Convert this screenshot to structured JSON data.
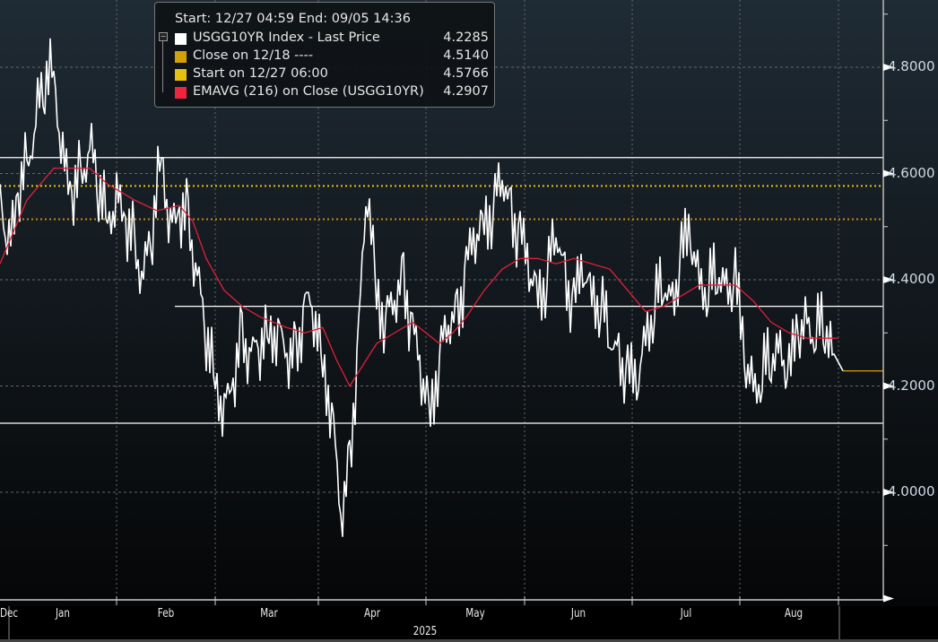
{
  "legend": {
    "header": "Start: 12/27 04:59 End: 09/05 14:36",
    "items": [
      {
        "label": "USGG10YR Index - Last Price",
        "value": "4.2285",
        "color": "#ffffff"
      },
      {
        "label": "Close on 12/18 ----",
        "value": "4.5140",
        "color": "#d4a00a"
      },
      {
        "label": "Start on 12/27 06:00",
        "value": "4.5766",
        "color": "#e8c010"
      },
      {
        "label": "EMAVG (216)  on Close (USGG10YR)",
        "value": "4.2907",
        "color": "#f0243c"
      }
    ]
  },
  "chart_data": {
    "type": "line",
    "title": "USGG10YR Index",
    "xlabel": "2025",
    "ylabel": "",
    "ylim": [
      3.8,
      4.9
    ],
    "yticks": [
      "4.8000",
      "4.6000",
      "4.4000",
      "4.2000",
      "4.0000"
    ],
    "ytick_values": [
      4.8,
      4.6,
      4.4,
      4.2,
      4.0
    ],
    "x_unit": "trading-day index (0 = mid Dec 2024)",
    "xlim": [
      0,
      197
    ],
    "xticks": [
      {
        "label": "Dec",
        "x": 2
      },
      {
        "label": "Jan",
        "x": 14
      },
      {
        "label": "Feb",
        "x": 37
      },
      {
        "label": "Mar",
        "x": 60
      },
      {
        "label": "Apr",
        "x": 83
      },
      {
        "label": "May",
        "x": 106
      },
      {
        "label": "Jun",
        "x": 129
      },
      {
        "label": "Jul",
        "x": 153
      },
      {
        "label": "Aug",
        "x": 177
      }
    ],
    "xgrid": [
      26,
      48,
      71,
      95,
      117,
      141,
      165,
      187
    ],
    "series": [
      {
        "name": "USGG10YR Index - Last Price",
        "color": "#ffffff",
        "x_step": 2,
        "values": [
          4.58,
          4.45,
          4.55,
          4.62,
          4.7,
          4.78,
          4.8,
          4.62,
          4.55,
          4.6,
          4.65,
          4.58,
          4.52,
          4.55,
          4.5,
          4.47,
          4.4,
          4.5,
          4.65,
          4.49,
          4.52,
          4.52,
          4.4,
          4.3,
          4.22,
          4.15,
          4.2,
          4.3,
          4.25,
          4.28,
          4.31,
          4.3,
          4.25,
          4.26,
          4.35,
          4.34,
          4.25,
          4.15,
          3.95,
          4.05,
          4.3,
          4.58,
          4.38,
          4.32,
          4.36,
          4.4,
          4.3,
          4.22,
          4.16,
          4.25,
          4.32,
          4.33,
          4.42,
          4.48,
          4.52,
          4.53,
          4.6,
          4.52,
          4.48,
          4.42,
          4.38,
          4.4,
          4.5,
          4.4,
          4.35,
          4.42,
          4.38,
          4.35,
          4.3,
          4.25,
          4.22,
          4.2,
          4.3,
          4.35,
          4.4,
          4.35,
          4.45,
          4.48,
          4.4,
          4.38,
          4.42,
          4.38,
          4.4,
          4.25,
          4.2,
          4.22,
          4.26,
          4.27,
          4.22,
          4.3,
          4.32,
          4.3,
          4.32,
          4.26,
          4.2285
        ]
      },
      {
        "name": "EMAVG (216) on Close (USGG10YR)",
        "color": "#e0203a",
        "points": [
          [
            0,
            4.43
          ],
          [
            6,
            4.55
          ],
          [
            12,
            4.61
          ],
          [
            16,
            4.61
          ],
          [
            20,
            4.61
          ],
          [
            24,
            4.58
          ],
          [
            30,
            4.55
          ],
          [
            35,
            4.53
          ],
          [
            40,
            4.54
          ],
          [
            43,
            4.51
          ],
          [
            46,
            4.44
          ],
          [
            50,
            4.38
          ],
          [
            54,
            4.35
          ],
          [
            58,
            4.33
          ],
          [
            64,
            4.31
          ],
          [
            68,
            4.3
          ],
          [
            72,
            4.31
          ],
          [
            75,
            4.25
          ],
          [
            78,
            4.2
          ],
          [
            81,
            4.24
          ],
          [
            84,
            4.28
          ],
          [
            88,
            4.3
          ],
          [
            92,
            4.32
          ],
          [
            95,
            4.3
          ],
          [
            98,
            4.28
          ],
          [
            101,
            4.3
          ],
          [
            104,
            4.33
          ],
          [
            108,
            4.38
          ],
          [
            112,
            4.42
          ],
          [
            116,
            4.44
          ],
          [
            120,
            4.44
          ],
          [
            124,
            4.43
          ],
          [
            128,
            4.44
          ],
          [
            132,
            4.43
          ],
          [
            136,
            4.42
          ],
          [
            140,
            4.38
          ],
          [
            144,
            4.34
          ],
          [
            148,
            4.35
          ],
          [
            152,
            4.37
          ],
          [
            156,
            4.39
          ],
          [
            160,
            4.39
          ],
          [
            164,
            4.39
          ],
          [
            168,
            4.36
          ],
          [
            172,
            4.32
          ],
          [
            176,
            4.3
          ],
          [
            180,
            4.29
          ],
          [
            187,
            4.29
          ]
        ]
      }
    ],
    "hlines": [
      {
        "value": 4.63,
        "color": "#ffffff",
        "style": "solid"
      },
      {
        "value": 4.5766,
        "color": "#e8c010",
        "style": "dotted"
      },
      {
        "value": 4.514,
        "color": "#c08a10",
        "style": "dotted"
      },
      {
        "value": 4.35,
        "color": "#ffffff",
        "style": "solid",
        "from_x": 39
      },
      {
        "value": 4.13,
        "color": "#ffffff",
        "style": "solid"
      },
      {
        "value": 4.2285,
        "color": "#d4a00a",
        "style": "solid",
        "from_x": 188
      }
    ],
    "grid": true
  }
}
